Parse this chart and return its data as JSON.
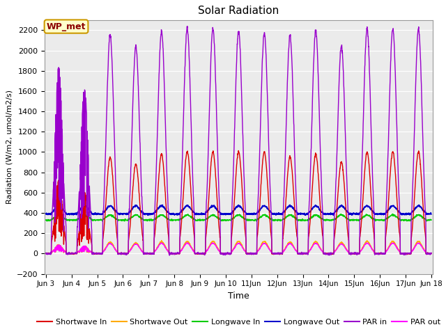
{
  "title": "Solar Radiation",
  "xlabel": "Time",
  "ylabel": "Radiation (W/m2, umol/m2/s)",
  "ylim": [
    -200,
    2300
  ],
  "yticks": [
    -200,
    0,
    200,
    400,
    600,
    800,
    1000,
    1200,
    1400,
    1600,
    1800,
    2000,
    2200
  ],
  "xtick_labels": [
    "Jun 3",
    "Jun 4",
    "Jun 5",
    "Jun 6",
    "Jun 7",
    "Jun 8",
    "Jun 9",
    "Jun 10",
    "11Jun",
    "12Jun",
    "13Jun",
    "14Jun",
    "15Jun",
    "16Jun",
    "17Jun",
    "Jun 18"
  ],
  "label_box": "WP_met",
  "bg_color": "#ebebeb",
  "series": {
    "Shortwave In": {
      "color": "#dd0000",
      "lw": 1.0
    },
    "Shortwave Out": {
      "color": "#ffaa00",
      "lw": 1.0
    },
    "Longwave In": {
      "color": "#00cc00",
      "lw": 1.0
    },
    "Longwave Out": {
      "color": "#0000cc",
      "lw": 1.2
    },
    "PAR in": {
      "color": "#9900cc",
      "lw": 1.0
    },
    "PAR out": {
      "color": "#ff00ff",
      "lw": 1.0
    }
  }
}
